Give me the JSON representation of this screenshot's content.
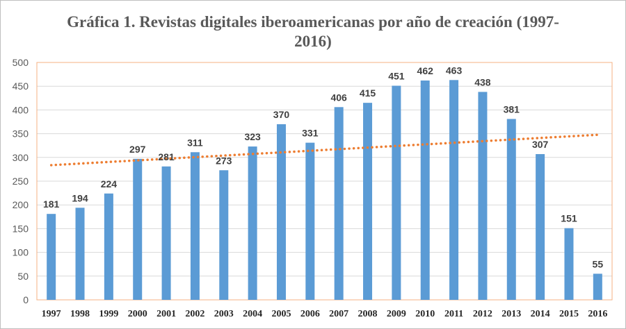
{
  "chart_data": {
    "type": "bar",
    "title": "Gráfica 1. Revistas digitales iberoamericanas por año de creación (1997-2016)",
    "categories": [
      "1997",
      "1998",
      "1999",
      "2000",
      "2001",
      "2002",
      "2003",
      "2004",
      "2005",
      "2006",
      "2007",
      "2008",
      "2009",
      "2010",
      "2011",
      "2012",
      "2013",
      "2014",
      "2015",
      "2016"
    ],
    "values": [
      181,
      194,
      224,
      297,
      281,
      311,
      273,
      323,
      370,
      331,
      406,
      415,
      451,
      462,
      463,
      438,
      381,
      307,
      151,
      55
    ],
    "ylim": [
      0,
      500
    ],
    "yticks": [
      "0",
      "50",
      "100",
      "150",
      "200",
      "250",
      "300",
      "350",
      "400",
      "450",
      "500"
    ],
    "xlabel": "",
    "ylabel": "",
    "grid": true,
    "trendline": {
      "type": "linear",
      "style": "dotted"
    },
    "colors": {
      "bar": "#5b9bd5",
      "trend": "#ed7d31",
      "grid": "#d9d9d9",
      "plot_border": "#f4b183"
    }
  }
}
